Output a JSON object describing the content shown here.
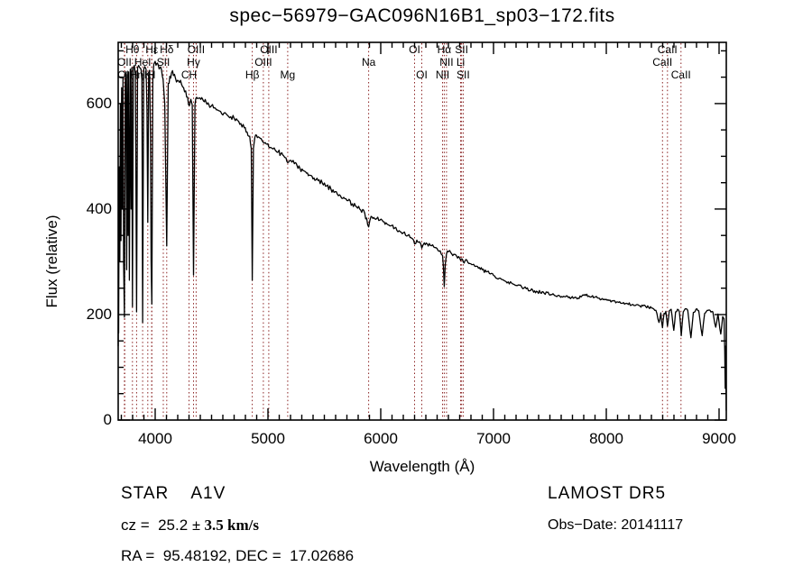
{
  "title": "spec−56979−GAC096N16B1_sp03−172.fits",
  "annotations": {
    "object_class": "STAR    A1V",
    "cz_prefix": "cz =  25.2 ",
    "cz_value": "± 3.5 km/s",
    "radec": "RA =  95.48192, DEC =  17.02686",
    "survey": "LAMOST DR5",
    "obs_date": "Obs−Date: 20141117"
  },
  "chart_data": {
    "type": "line",
    "title": "spec−56979−GAC096N16B1_sp03−172.fits",
    "xlabel": "Wavelength (Å)",
    "ylabel": "Flux (relative)",
    "xlim": [
      3672,
      9064
    ],
    "ylim": [
      0,
      716
    ],
    "xticks": [
      4000,
      5000,
      6000,
      7000,
      8000,
      9000
    ],
    "yticks": [
      0,
      200,
      400,
      600
    ],
    "x_minor_step": 100,
    "y_minor_step": 50,
    "grid": false,
    "frame_color": "#000000",
    "marker_color": "#8B2323",
    "line_markers": [
      {
        "label": "OII",
        "wavelength": 3727,
        "row": 2
      },
      {
        "label": "OII",
        "wavelength": 3730,
        "row": 3
      },
      {
        "label": "Hθ",
        "wavelength": 3798,
        "row": 1
      },
      {
        "label": "Hη",
        "wavelength": 3835,
        "row": 3
      },
      {
        "label": "HeI",
        "wavelength": 3889,
        "row": 2
      },
      {
        "label": "K",
        "wavelength": 3934,
        "row": 3
      },
      {
        "label": "H",
        "wavelength": 3969,
        "row": 3
      },
      {
        "label": "Hε",
        "wavelength": 3970,
        "row": 1
      },
      {
        "label": "SII",
        "wavelength": 4072,
        "row": 2
      },
      {
        "label": "Hδ",
        "wavelength": 4102,
        "row": 1
      },
      {
        "label": "CH",
        "wavelength": 4300,
        "row": 3
      },
      {
        "label": "Hγ",
        "wavelength": 4340,
        "row": 2
      },
      {
        "label": "OIII",
        "wavelength": 4363,
        "row": 1
      },
      {
        "label": "Hβ",
        "wavelength": 4861,
        "row": 3
      },
      {
        "label": "OIII",
        "wavelength": 4959,
        "row": 2
      },
      {
        "label": "OIII",
        "wavelength": 5007,
        "row": 1
      },
      {
        "label": "Mg",
        "wavelength": 5175,
        "row": 3
      },
      {
        "label": "Na",
        "wavelength": 5893,
        "row": 2
      },
      {
        "label": "OI",
        "wavelength": 6300,
        "row": 1
      },
      {
        "label": "OI",
        "wavelength": 6364,
        "row": 3
      },
      {
        "label": "NII",
        "wavelength": 6548,
        "row": 3
      },
      {
        "label": "Hα",
        "wavelength": 6563,
        "row": 1
      },
      {
        "label": "NII",
        "wavelength": 6583,
        "row": 2
      },
      {
        "label": "Li",
        "wavelength": 6708,
        "row": 2
      },
      {
        "label": "SII",
        "wavelength": 6717,
        "row": 1
      },
      {
        "label": "SII",
        "wavelength": 6731,
        "row": 3
      },
      {
        "label": "CaII",
        "wavelength": 8498,
        "row": 2
      },
      {
        "label": "CaII",
        "wavelength": 8542,
        "row": 1
      },
      {
        "label": "CaII",
        "wavelength": 8662,
        "row": 3
      }
    ],
    "series": [
      {
        "name": "spectrum",
        "color": "#000000",
        "points": [
          [
            3672,
            140
          ],
          [
            3674,
            330
          ],
          [
            3676,
            165
          ],
          [
            3681,
            480
          ],
          [
            3686,
            300
          ],
          [
            3691,
            600
          ],
          [
            3697,
            340
          ],
          [
            3702,
            630
          ],
          [
            3708,
            400
          ],
          [
            3714,
            650
          ],
          [
            3720,
            300
          ],
          [
            3727,
            195
          ],
          [
            3734,
            640
          ],
          [
            3741,
            660
          ],
          [
            3747,
            285
          ],
          [
            3753,
            655
          ],
          [
            3759,
            350
          ],
          [
            3765,
            660
          ],
          [
            3771,
            265
          ],
          [
            3779,
            665
          ],
          [
            3786,
            400
          ],
          [
            3792,
            668
          ],
          [
            3798,
            215
          ],
          [
            3806,
            668
          ],
          [
            3815,
            672
          ],
          [
            3825,
            655
          ],
          [
            3835,
            205
          ],
          [
            3844,
            668
          ],
          [
            3853,
            672
          ],
          [
            3863,
            668
          ],
          [
            3874,
            665
          ],
          [
            3882,
            645
          ],
          [
            3889,
            185
          ],
          [
            3898,
            665
          ],
          [
            3908,
            670
          ],
          [
            3919,
            665
          ],
          [
            3927,
            590
          ],
          [
            3934,
            375
          ],
          [
            3942,
            655
          ],
          [
            3950,
            663
          ],
          [
            3958,
            540
          ],
          [
            3964,
            300
          ],
          [
            3970,
            220
          ],
          [
            3979,
            645
          ],
          [
            3988,
            675
          ],
          [
            4000,
            680
          ],
          [
            4014,
            676
          ],
          [
            4028,
            672
          ],
          [
            4042,
            668
          ],
          [
            4056,
            664
          ],
          [
            4070,
            645
          ],
          [
            4085,
            600
          ],
          [
            4102,
            330
          ],
          [
            4116,
            638
          ],
          [
            4130,
            652
          ],
          [
            4145,
            658
          ],
          [
            4162,
            653
          ],
          [
            4180,
            648
          ],
          [
            4198,
            644
          ],
          [
            4216,
            640
          ],
          [
            4234,
            636
          ],
          [
            4252,
            630
          ],
          [
            4270,
            624
          ],
          [
            4288,
            612
          ],
          [
            4303,
            596
          ],
          [
            4316,
            608
          ],
          [
            4329,
            597
          ],
          [
            4340,
            275
          ],
          [
            4353,
            598
          ],
          [
            4367,
            612
          ],
          [
            4385,
            610
          ],
          [
            4405,
            608
          ],
          [
            4428,
            605
          ],
          [
            4452,
            602
          ],
          [
            4476,
            598
          ],
          [
            4500,
            596
          ],
          [
            4526,
            592
          ],
          [
            4552,
            588
          ],
          [
            4580,
            585
          ],
          [
            4610,
            582
          ],
          [
            4640,
            578
          ],
          [
            4670,
            575
          ],
          [
            4700,
            572
          ],
          [
            4730,
            568
          ],
          [
            4760,
            562
          ],
          [
            4790,
            554
          ],
          [
            4815,
            546
          ],
          [
            4838,
            538
          ],
          [
            4852,
            515
          ],
          [
            4861,
            265
          ],
          [
            4871,
            515
          ],
          [
            4884,
            536
          ],
          [
            4898,
            540
          ],
          [
            4914,
            537
          ],
          [
            4932,
            534
          ],
          [
            4947,
            530
          ],
          [
            4959,
            526
          ],
          [
            4976,
            526
          ],
          [
            4992,
            523
          ],
          [
            5007,
            518
          ],
          [
            5024,
            517
          ],
          [
            5044,
            514
          ],
          [
            5066,
            511
          ],
          [
            5090,
            508
          ],
          [
            5114,
            505
          ],
          [
            5138,
            501
          ],
          [
            5160,
            497
          ],
          [
            5175,
            488
          ],
          [
            5192,
            492
          ],
          [
            5212,
            489
          ],
          [
            5234,
            486
          ],
          [
            5258,
            482
          ],
          [
            5284,
            477
          ],
          [
            5312,
            473
          ],
          [
            5342,
            468
          ],
          [
            5374,
            464
          ],
          [
            5408,
            459
          ],
          [
            5444,
            454
          ],
          [
            5482,
            449
          ],
          [
            5520,
            444
          ],
          [
            5558,
            438
          ],
          [
            5596,
            433
          ],
          [
            5634,
            427
          ],
          [
            5672,
            422
          ],
          [
            5710,
            416
          ],
          [
            5748,
            410
          ],
          [
            5786,
            404
          ],
          [
            5822,
            398
          ],
          [
            5858,
            392
          ],
          [
            5893,
            366
          ],
          [
            5914,
            386
          ],
          [
            5938,
            384
          ],
          [
            5964,
            382
          ],
          [
            5992,
            379
          ],
          [
            6022,
            376
          ],
          [
            6054,
            372
          ],
          [
            6088,
            368
          ],
          [
            6124,
            364
          ],
          [
            6162,
            359
          ],
          [
            6200,
            355
          ],
          [
            6240,
            350
          ],
          [
            6280,
            344
          ],
          [
            6300,
            334
          ],
          [
            6320,
            341
          ],
          [
            6344,
            338
          ],
          [
            6364,
            326
          ],
          [
            6386,
            336
          ],
          [
            6412,
            334
          ],
          [
            6440,
            331
          ],
          [
            6470,
            328
          ],
          [
            6500,
            325
          ],
          [
            6526,
            321
          ],
          [
            6548,
            312
          ],
          [
            6556,
            290
          ],
          [
            6563,
            253
          ],
          [
            6572,
            295
          ],
          [
            6583,
            315
          ],
          [
            6600,
            319
          ],
          [
            6622,
            317
          ],
          [
            6646,
            314
          ],
          [
            6672,
            311
          ],
          [
            6700,
            307
          ],
          [
            6708,
            303
          ],
          [
            6724,
            305
          ],
          [
            6731,
            300
          ],
          [
            6748,
            302
          ],
          [
            6772,
            299
          ],
          [
            6800,
            296
          ],
          [
            6832,
            292
          ],
          [
            6866,
            288
          ],
          [
            6900,
            285
          ],
          [
            6936,
            281
          ],
          [
            6972,
            277
          ],
          [
            7010,
            273
          ],
          [
            7050,
            269
          ],
          [
            7090,
            265
          ],
          [
            7130,
            262
          ],
          [
            7170,
            258
          ],
          [
            7210,
            255
          ],
          [
            7250,
            252
          ],
          [
            7290,
            249
          ],
          [
            7330,
            246
          ],
          [
            7390,
            243
          ],
          [
            7450,
            240
          ],
          [
            7510,
            238
          ],
          [
            7570,
            236
          ],
          [
            7630,
            234
          ],
          [
            7690,
            232
          ],
          [
            7750,
            231
          ],
          [
            7810,
            238
          ],
          [
            7870,
            234
          ],
          [
            7930,
            231
          ],
          [
            7990,
            228
          ],
          [
            8050,
            226
          ],
          [
            8110,
            223
          ],
          [
            8170,
            221
          ],
          [
            8230,
            219
          ],
          [
            8290,
            217
          ],
          [
            8350,
            215
          ],
          [
            8410,
            212
          ],
          [
            8440,
            208
          ],
          [
            8467,
            185
          ],
          [
            8483,
            203
          ],
          [
            8498,
            175
          ],
          [
            8512,
            202
          ],
          [
            8528,
            206
          ],
          [
            8542,
            178
          ],
          [
            8558,
            207
          ],
          [
            8575,
            210
          ],
          [
            8598,
            170
          ],
          [
            8614,
            205
          ],
          [
            8632,
            210
          ],
          [
            8648,
            205
          ],
          [
            8665,
            160
          ],
          [
            8682,
            205
          ],
          [
            8700,
            211
          ],
          [
            8722,
            208
          ],
          [
            8750,
            156
          ],
          [
            8772,
            204
          ],
          [
            8795,
            210
          ],
          [
            8820,
            207
          ],
          [
            8850,
            160
          ],
          [
            8872,
            202
          ],
          [
            8895,
            208
          ],
          [
            8920,
            208
          ],
          [
            8945,
            205
          ],
          [
            8970,
            176
          ],
          [
            8990,
            201
          ],
          [
            9015,
            163
          ],
          [
            9032,
            196
          ],
          [
            9044,
            192
          ],
          [
            9050,
            130
          ],
          [
            9054,
            60
          ],
          [
            9057,
            140
          ],
          [
            9060,
            90
          ],
          [
            9063,
            18
          ]
        ]
      }
    ]
  }
}
